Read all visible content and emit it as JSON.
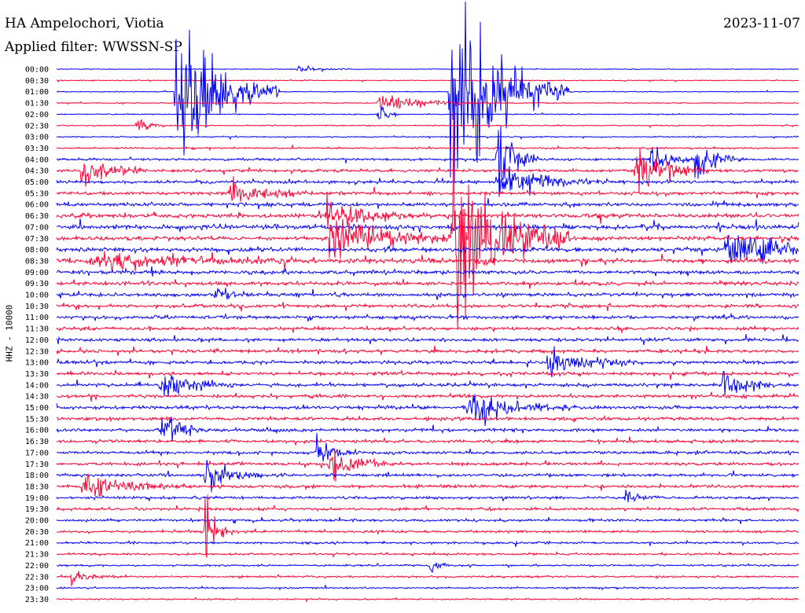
{
  "header": {
    "station": "HA Ampelochori, Viotia",
    "filter": "Applied filter: WWSSN-SP",
    "date": "2023-11-07",
    "channel": "HHZ - 10000"
  },
  "colors": {
    "blue": "#0000ff",
    "red": "#ff0033",
    "background": "#ffffff"
  },
  "chart_data": {
    "type": "line",
    "title": "HA Ampelochori, Viotia",
    "subtitle": "Applied filter: WWSSN-SP",
    "ylabel": "HHZ - 10000",
    "date": "2023-11-07",
    "series_colors_alternate": [
      "blue",
      "red"
    ],
    "categories": [
      "00:00",
      "00:30",
      "01:00",
      "01:30",
      "02:00",
      "02:30",
      "03:00",
      "03:30",
      "04:00",
      "04:30",
      "05:00",
      "05:30",
      "06:00",
      "06:30",
      "07:00",
      "07:30",
      "08:00",
      "08:30",
      "09:00",
      "09:30",
      "10:00",
      "10:30",
      "11:00",
      "11:30",
      "12:00",
      "12:30",
      "13:00",
      "13:30",
      "14:00",
      "14:30",
      "15:00",
      "15:30",
      "16:00",
      "16:30",
      "17:00",
      "17:30",
      "18:00",
      "18:30",
      "19:00",
      "19:30",
      "20:00",
      "20:30",
      "21:00",
      "21:30",
      "22:00",
      "22:30",
      "23:00",
      "23:30"
    ],
    "noise_level": [
      0.4,
      0.5,
      0.5,
      0.5,
      0.6,
      0.6,
      0.7,
      0.9,
      1.3,
      1.6,
      1.7,
      1.8,
      2.0,
      2.3,
      2.4,
      2.2,
      2.3,
      2.5,
      2.0,
      2.0,
      1.9,
      1.8,
      1.8,
      1.8,
      1.8,
      1.8,
      1.8,
      1.8,
      1.8,
      1.8,
      1.8,
      1.8,
      1.7,
      1.7,
      1.6,
      1.6,
      1.6,
      1.6,
      1.5,
      1.5,
      1.4,
      1.3,
      1.2,
      1.1,
      1.0,
      1.0,
      0.9,
      0.8
    ],
    "events": [
      {
        "time": "00:00",
        "minute": 9.7,
        "amplitude": 6,
        "duration": 0.8
      },
      {
        "time": "01:00",
        "minute": 4.8,
        "amplitude": 120,
        "duration": 1.4
      },
      {
        "time": "01:00",
        "minute": 15.9,
        "amplitude": 150,
        "duration": 1.6
      },
      {
        "time": "01:00",
        "minute": 16.3,
        "amplitude": 10,
        "duration": 1.0
      },
      {
        "time": "01:30",
        "minute": 13.0,
        "amplitude": 12,
        "duration": 1.5
      },
      {
        "time": "02:00",
        "minute": 13.0,
        "amplitude": 20,
        "duration": 0.3
      },
      {
        "time": "02:30",
        "minute": 3.2,
        "amplitude": 14,
        "duration": 0.4
      },
      {
        "time": "04:00",
        "minute": 17.8,
        "amplitude": 60,
        "duration": 0.6
      },
      {
        "time": "04:00",
        "minute": 24.0,
        "amplitude": 24,
        "duration": 0.6
      },
      {
        "time": "04:00",
        "minute": 25.8,
        "amplitude": 30,
        "duration": 0.7
      },
      {
        "time": "04:30",
        "minute": 1.0,
        "amplitude": 28,
        "duration": 0.9
      },
      {
        "time": "04:30",
        "minute": 23.4,
        "amplitude": 38,
        "duration": 1.0
      },
      {
        "time": "05:00",
        "minute": 17.8,
        "amplitude": 22,
        "duration": 1.5
      },
      {
        "time": "05:30",
        "minute": 7.0,
        "amplitude": 16,
        "duration": 1.2
      },
      {
        "time": "06:30",
        "minute": 10.9,
        "amplitude": 22,
        "duration": 1.3
      },
      {
        "time": "07:30",
        "minute": 11.0,
        "amplitude": 26,
        "duration": 2.0
      },
      {
        "time": "07:30",
        "minute": 16.0,
        "amplitude": 140,
        "duration": 1.6
      },
      {
        "time": "08:00",
        "minute": 27.0,
        "amplitude": 24,
        "duration": 2.0
      },
      {
        "time": "08:30",
        "minute": 1.5,
        "amplitude": 12,
        "duration": 3.0
      },
      {
        "time": "10:00",
        "minute": 6.4,
        "amplitude": 10,
        "duration": 0.5
      },
      {
        "time": "13:00",
        "minute": 19.8,
        "amplitude": 24,
        "duration": 1.2
      },
      {
        "time": "14:00",
        "minute": 4.2,
        "amplitude": 26,
        "duration": 1.0
      },
      {
        "time": "14:00",
        "minute": 26.9,
        "amplitude": 22,
        "duration": 0.8
      },
      {
        "time": "15:00",
        "minute": 16.6,
        "amplitude": 24,
        "duration": 1.5
      },
      {
        "time": "16:00",
        "minute": 4.2,
        "amplitude": 20,
        "duration": 0.8
      },
      {
        "time": "17:00",
        "minute": 10.5,
        "amplitude": 20,
        "duration": 0.6
      },
      {
        "time": "17:30",
        "minute": 11.0,
        "amplitude": 36,
        "duration": 0.8
      },
      {
        "time": "18:00",
        "minute": 6.0,
        "amplitude": 24,
        "duration": 0.8
      },
      {
        "time": "18:30",
        "minute": 1.0,
        "amplitude": 16,
        "duration": 1.5
      },
      {
        "time": "19:00",
        "minute": 23.0,
        "amplitude": 12,
        "duration": 0.4
      },
      {
        "time": "20:30",
        "minute": 6.0,
        "amplitude": 44,
        "duration": 0.4
      },
      {
        "time": "22:00",
        "minute": 15.0,
        "amplitude": 14,
        "duration": 0.3
      },
      {
        "time": "22:30",
        "minute": 0.6,
        "amplitude": 10,
        "duration": 0.6
      }
    ],
    "xlim_minutes": [
      0,
      30
    ],
    "grid": false
  }
}
